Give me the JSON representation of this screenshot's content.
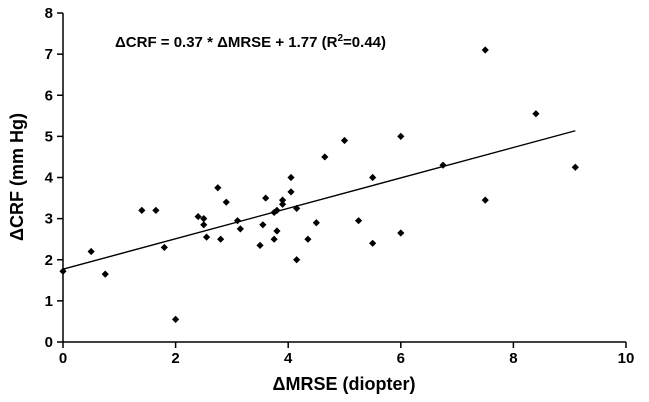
{
  "chart_data": {
    "type": "scatter",
    "xlabel": "ΔMRSE (diopter)",
    "ylabel": "ΔCRF (mm Hg)",
    "xlim": [
      0,
      10
    ],
    "ylim": [
      0,
      8
    ],
    "x_ticks": [
      "0",
      "2",
      "4",
      "6",
      "8",
      "10"
    ],
    "y_ticks": [
      "0",
      "1",
      "2",
      "3",
      "4",
      "5",
      "6",
      "7",
      "8"
    ],
    "grid": false,
    "legend": "none",
    "annotation": {
      "prefix": "ΔCRF =  0.37  * ΔMRSE  + 1.77 (R",
      "sup": "2",
      "suffix": "=0.44)"
    },
    "trendline": {
      "slope": 0.37,
      "intercept": 1.77,
      "x_range": [
        0,
        9.1
      ]
    },
    "marker_color": "#000000",
    "points": [
      [
        0.0,
        1.72
      ],
      [
        0.5,
        2.2
      ],
      [
        0.75,
        1.65
      ],
      [
        1.4,
        3.2
      ],
      [
        1.65,
        3.2
      ],
      [
        1.8,
        2.3
      ],
      [
        2.0,
        0.55
      ],
      [
        2.4,
        3.05
      ],
      [
        2.5,
        2.85
      ],
      [
        2.5,
        3.0
      ],
      [
        2.55,
        2.55
      ],
      [
        2.75,
        3.75
      ],
      [
        2.8,
        2.5
      ],
      [
        2.9,
        3.4
      ],
      [
        3.1,
        2.95
      ],
      [
        3.15,
        2.75
      ],
      [
        3.5,
        2.35
      ],
      [
        3.55,
        2.85
      ],
      [
        3.6,
        3.5
      ],
      [
        3.75,
        3.15
      ],
      [
        3.75,
        2.5
      ],
      [
        3.8,
        2.7
      ],
      [
        3.8,
        3.2
      ],
      [
        3.9,
        3.45
      ],
      [
        3.9,
        3.35
      ],
      [
        4.05,
        3.65
      ],
      [
        4.05,
        4.0
      ],
      [
        4.15,
        3.25
      ],
      [
        4.15,
        2.0
      ],
      [
        4.35,
        2.5
      ],
      [
        4.5,
        2.9
      ],
      [
        4.65,
        4.5
      ],
      [
        5.0,
        4.9
      ],
      [
        5.25,
        2.95
      ],
      [
        5.5,
        4.0
      ],
      [
        5.5,
        2.4
      ],
      [
        6.0,
        5.0
      ],
      [
        6.0,
        2.65
      ],
      [
        6.75,
        4.3
      ],
      [
        7.5,
        3.45
      ],
      [
        7.5,
        7.1
      ],
      [
        8.4,
        5.55
      ],
      [
        9.1,
        4.25
      ]
    ]
  }
}
